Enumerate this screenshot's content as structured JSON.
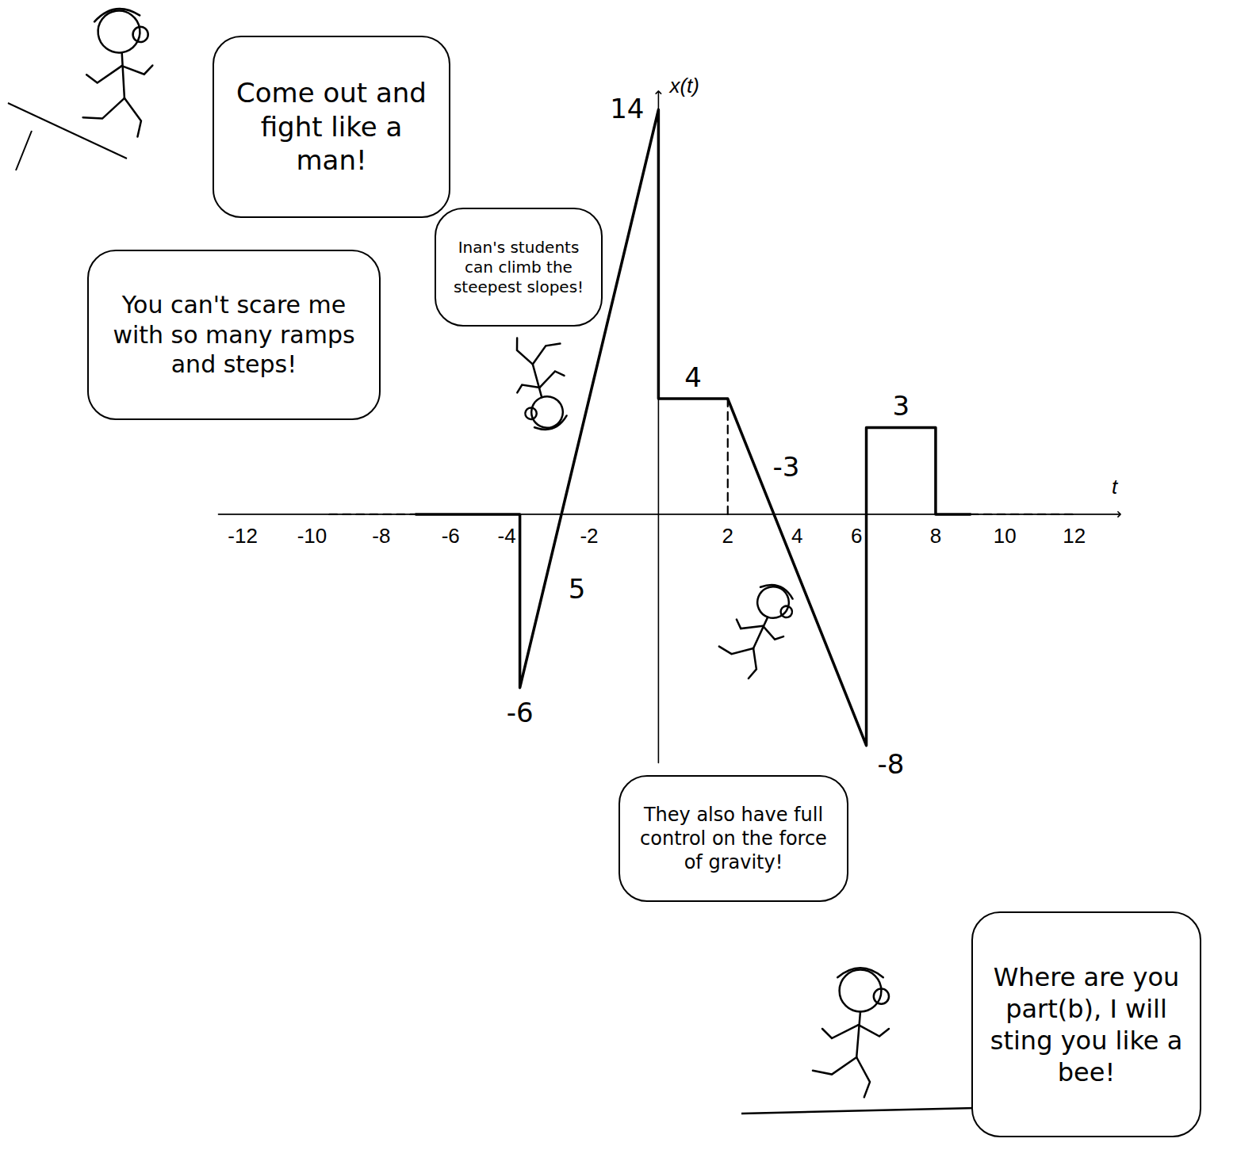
{
  "chart_data": {
    "type": "line",
    "xlabel": "t",
    "ylabel": "x(t)",
    "xlim": [
      -12.7,
      13.3
    ],
    "ylim": [
      -8.6,
      14.6
    ],
    "xticks": [
      -12,
      -10,
      -8,
      -6,
      -4,
      -2,
      2,
      4,
      6,
      8,
      10,
      12
    ],
    "tick_labels": "x",
    "grid": false,
    "series": [
      {
        "color": "#000000",
        "line_style": "solid",
        "x": [
          -7,
          -4,
          -4,
          0,
          0,
          2,
          6,
          6,
          8,
          8,
          9
        ],
        "values": [
          0,
          0,
          -6,
          14,
          4,
          4,
          -8,
          3,
          3,
          0,
          0
        ]
      },
      {
        "color": "#000000",
        "line_style": "dashed",
        "x": [
          -9.5,
          -7
        ],
        "values": [
          0,
          0
        ]
      },
      {
        "color": "#000000",
        "line_style": "dashed",
        "x": [
          9,
          12
        ],
        "values": [
          0,
          0
        ]
      },
      {
        "color": "#000000",
        "line_style": "dashed",
        "x": [
          2,
          2
        ],
        "values": [
          0,
          4
        ]
      }
    ],
    "annotations": [
      {
        "text": "14",
        "x": 0,
        "y": 14
      },
      {
        "text": "4",
        "x": 1,
        "y": 4
      },
      {
        "text": "3",
        "x": 7,
        "y": 3
      },
      {
        "text": "-6",
        "x": -4,
        "y": -6
      },
      {
        "text": "-8",
        "x": 6,
        "y": -8
      },
      {
        "text": "5",
        "x": -2.6,
        "y": -2.6
      },
      {
        "text": "-3",
        "x": 3.3,
        "y": 1.6
      }
    ],
    "speech_bubbles": [
      "Come out and fight like a man!",
      "You can't scare me with so many ramps and steps!",
      "Inan's students can climb the steepest slopes!",
      "They also have full control on the force of gravity!",
      "Where are you part(b), I will sting you like a bee!"
    ]
  }
}
